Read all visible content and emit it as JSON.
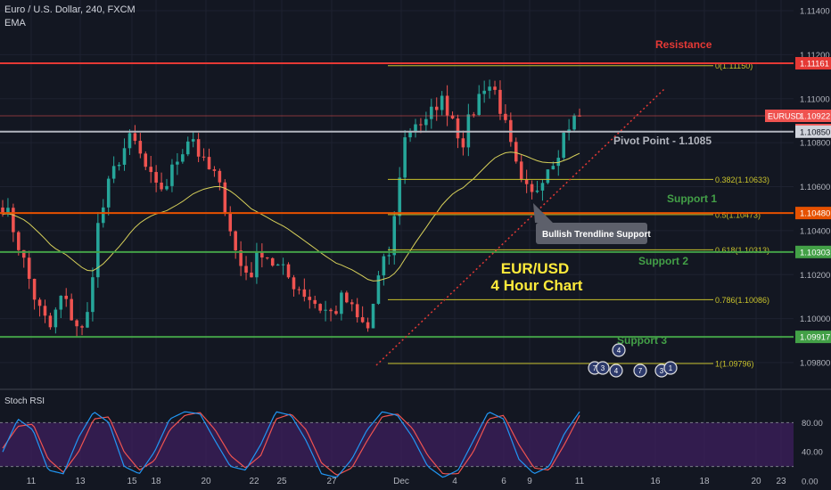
{
  "header": {
    "symbol_line": "Euro / U.S. Dollar, 240, FXCM",
    "indicator": "EMA"
  },
  "colors": {
    "background": "#131722",
    "up": "#26a69a",
    "down": "#ef5350",
    "grid": "#1e2230",
    "resistance": "#e53935",
    "support": "#43a047",
    "pivot": "#b2b5be",
    "fib": "#c8c22c",
    "ema": "#d7d05a",
    "trendline": "#e53935",
    "rsi_k": "#2196f3",
    "rsi_d": "#ef5350",
    "rsi_band": "#3d1f5e",
    "accent_text": "#ffeb3b"
  },
  "chart_data": [
    {
      "type": "candlestick",
      "title": "EUR/USD 4 Hour Chart",
      "symbol": "EURUSD",
      "timeframe": "240",
      "ylim": [
        1.097,
        1.1145
      ],
      "y_ticks": [
        "1.11400",
        "1.11200",
        "1.11000",
        "1.10800",
        "1.10600",
        "1.10400",
        "1.10200",
        "1.10000",
        "1.09800"
      ],
      "x_ticks": [
        "11",
        "13",
        "15",
        "18",
        "20",
        "22",
        "25",
        "27",
        "Dec",
        "4",
        "6",
        "9",
        "11",
        "16",
        "18",
        "20",
        "23"
      ],
      "price_labels": {
        "resistance": "1.11161",
        "current": "1.10922",
        "countdown": "03:33:15",
        "pivot": "1.10850",
        "support1": "1.10480",
        "support2": "1.10303",
        "support3": "1.09917"
      },
      "levels": [
        {
          "name": "Resistance",
          "label": "Resistance",
          "price": 1.11161
        },
        {
          "name": "Pivot Point",
          "label": "Pivot Point - 1.1085",
          "price": 1.1085
        },
        {
          "name": "Support 1",
          "label": "Support 1",
          "price": 1.1048
        },
        {
          "name": "Support 2",
          "label": "Support 2",
          "price": 1.10303
        },
        {
          "name": "Support 3",
          "label": "Support 3",
          "price": 1.09917
        }
      ],
      "fibonacci": [
        {
          "label": "0(1.11150)",
          "price": 1.1115
        },
        {
          "label": "0.382(1.10633)",
          "price": 1.10633
        },
        {
          "label": "0.5(1.10473)",
          "price": 1.10473
        },
        {
          "label": "0.618(1.10313)",
          "price": 1.10313
        },
        {
          "label": "0.786(1.10086)",
          "price": 1.10086
        },
        {
          "label": "1(1.09796)",
          "price": 1.09796
        }
      ],
      "annotations": {
        "trendline_callout": "Bullish Trendline Support",
        "chart_title_line1": "EUR/USD",
        "chart_title_line2": "4 Hour Chart"
      },
      "events": [
        "4",
        "7",
        "3",
        "4",
        "7",
        "3",
        "1"
      ],
      "close_path": [
        1.1052,
        1.104,
        1.1022,
        1.1005,
        1.0995,
        1.101,
        1.1,
        1.0992,
        1.104,
        1.106,
        1.1075,
        1.1082,
        1.107,
        1.1058,
        1.1062,
        1.1075,
        1.1085,
        1.107,
        1.1065,
        1.105,
        1.1025,
        1.102,
        1.1032,
        1.1025,
        1.102,
        1.1015,
        1.101,
        1.1005,
        1.1002,
        1.101,
        1.1,
        1.0995,
        1.102,
        1.1032,
        1.108,
        1.109,
        1.1088,
        1.11,
        1.1095,
        1.108,
        1.1095,
        1.1108,
        1.1102,
        1.108,
        1.106,
        1.1055,
        1.1068,
        1.1075,
        1.1088,
        1.1092
      ]
    },
    {
      "type": "line",
      "title": "Stoch RSI",
      "ylim": [
        0,
        100
      ],
      "y_ticks": [
        "80.00",
        "40.00",
        "0.00"
      ],
      "k_path": [
        40,
        85,
        70,
        15,
        10,
        60,
        95,
        80,
        20,
        10,
        40,
        85,
        95,
        92,
        55,
        20,
        15,
        50,
        95,
        90,
        55,
        10,
        5,
        30,
        70,
        95,
        90,
        60,
        20,
        5,
        15,
        55,
        95,
        85,
        30,
        10,
        20,
        65,
        95
      ],
      "d_path": [
        45,
        75,
        78,
        30,
        12,
        40,
        85,
        88,
        40,
        15,
        28,
        70,
        90,
        94,
        70,
        35,
        18,
        35,
        85,
        92,
        70,
        25,
        8,
        18,
        55,
        88,
        92,
        72,
        35,
        10,
        10,
        40,
        85,
        90,
        50,
        18,
        15,
        50,
        90
      ]
    }
  ]
}
